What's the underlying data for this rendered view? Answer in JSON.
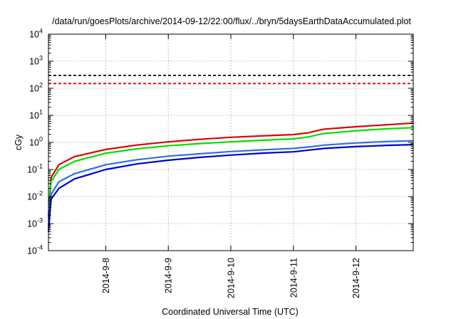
{
  "chart_data": {
    "type": "line",
    "title": "/data/run/goesPlots/archive/2014-09-12/22:00/flux/../bryn/5daysEarthDataAccumulated.plot",
    "xlabel": "Coordinated Universal Time (UTC)",
    "ylabel": "cGy",
    "x_ticks": [
      "2014-9-8",
      "2014-9-9",
      "2014-9-10",
      "2014-9-11",
      "2014-9-12"
    ],
    "xlim": [
      "2014-09-07 02:00",
      "2014-09-12 22:00"
    ],
    "y_scale": "log",
    "y_tick_labels": [
      {
        "base": "10",
        "exp": "-4"
      },
      {
        "base": "10",
        "exp": "-3"
      },
      {
        "base": "10",
        "exp": "-2"
      },
      {
        "base": "10",
        "exp": "-1"
      },
      {
        "base": "10",
        "exp": "0"
      },
      {
        "base": "10",
        "exp": "1"
      },
      {
        "base": "10",
        "exp": "2"
      },
      {
        "base": "10",
        "exp": "3"
      },
      {
        "base": "10",
        "exp": "4"
      }
    ],
    "ylim": [
      0.0001,
      10000
    ],
    "grid": true,
    "thresholds": [
      {
        "value": 300,
        "color": "#000000",
        "style": "dashed"
      },
      {
        "value": 150,
        "color": "#e00000",
        "style": "dashed"
      }
    ],
    "series": [
      {
        "color": "#e00000",
        "points": [
          [
            "2014-09-07 02:00",
            0.002
          ],
          [
            "2014-09-07 03:00",
            0.05
          ],
          [
            "2014-09-07 06:00",
            0.15
          ],
          [
            "2014-09-07 12:00",
            0.3
          ],
          [
            "2014-09-08 00:00",
            0.55
          ],
          [
            "2014-09-08 12:00",
            0.8
          ],
          [
            "2014-09-09 00:00",
            1.05
          ],
          [
            "2014-09-09 12:00",
            1.3
          ],
          [
            "2014-09-10 00:00",
            1.55
          ],
          [
            "2014-09-10 12:00",
            1.75
          ],
          [
            "2014-09-11 00:00",
            1.95
          ],
          [
            "2014-09-11 06:00",
            2.3
          ],
          [
            "2014-09-11 09:00",
            2.7
          ],
          [
            "2014-09-11 12:00",
            3.1
          ],
          [
            "2014-09-12 00:00",
            3.8
          ],
          [
            "2014-09-12 12:00",
            4.5
          ],
          [
            "2014-09-12 22:00",
            5.2
          ]
        ]
      },
      {
        "color": "#00e000",
        "points": [
          [
            "2014-09-07 02:00",
            0.0015
          ],
          [
            "2014-09-07 03:00",
            0.035
          ],
          [
            "2014-09-07 06:00",
            0.1
          ],
          [
            "2014-09-07 12:00",
            0.2
          ],
          [
            "2014-09-08 00:00",
            0.4
          ],
          [
            "2014-09-08 12:00",
            0.58
          ],
          [
            "2014-09-09 00:00",
            0.75
          ],
          [
            "2014-09-09 12:00",
            0.9
          ],
          [
            "2014-09-10 00:00",
            1.05
          ],
          [
            "2014-09-10 12:00",
            1.2
          ],
          [
            "2014-09-11 00:00",
            1.35
          ],
          [
            "2014-09-11 06:00",
            1.6
          ],
          [
            "2014-09-11 09:00",
            1.9
          ],
          [
            "2014-09-11 12:00",
            2.15
          ],
          [
            "2014-09-12 00:00",
            2.7
          ],
          [
            "2014-09-12 12:00",
            3.2
          ],
          [
            "2014-09-12 22:00",
            3.5
          ]
        ]
      },
      {
        "color": "#3070e0",
        "points": [
          [
            "2014-09-07 02:00",
            0.0008
          ],
          [
            "2014-09-07 03:00",
            0.012
          ],
          [
            "2014-09-07 06:00",
            0.035
          ],
          [
            "2014-09-07 12:00",
            0.07
          ],
          [
            "2014-09-08 00:00",
            0.15
          ],
          [
            "2014-09-08 12:00",
            0.23
          ],
          [
            "2014-09-09 00:00",
            0.31
          ],
          [
            "2014-09-09 12:00",
            0.38
          ],
          [
            "2014-09-10 00:00",
            0.46
          ],
          [
            "2014-09-10 12:00",
            0.53
          ],
          [
            "2014-09-11 00:00",
            0.6
          ],
          [
            "2014-09-11 06:00",
            0.68
          ],
          [
            "2014-09-11 12:00",
            0.8
          ],
          [
            "2014-09-12 00:00",
            0.95
          ],
          [
            "2014-09-12 12:00",
            1.08
          ],
          [
            "2014-09-12 22:00",
            1.15
          ]
        ]
      },
      {
        "color": "#0000d0",
        "points": [
          [
            "2014-09-07 02:00",
            0.0005
          ],
          [
            "2014-09-07 03:00",
            0.008
          ],
          [
            "2014-09-07 06:00",
            0.02
          ],
          [
            "2014-09-07 12:00",
            0.045
          ],
          [
            "2014-09-08 00:00",
            0.1
          ],
          [
            "2014-09-08 12:00",
            0.16
          ],
          [
            "2014-09-09 00:00",
            0.22
          ],
          [
            "2014-09-09 12:00",
            0.28
          ],
          [
            "2014-09-10 00:00",
            0.34
          ],
          [
            "2014-09-10 12:00",
            0.4
          ],
          [
            "2014-09-11 00:00",
            0.45
          ],
          [
            "2014-09-11 06:00",
            0.52
          ],
          [
            "2014-09-11 12:00",
            0.6
          ],
          [
            "2014-09-12 00:00",
            0.7
          ],
          [
            "2014-09-12 12:00",
            0.78
          ],
          [
            "2014-09-12 22:00",
            0.83
          ]
        ]
      }
    ]
  }
}
